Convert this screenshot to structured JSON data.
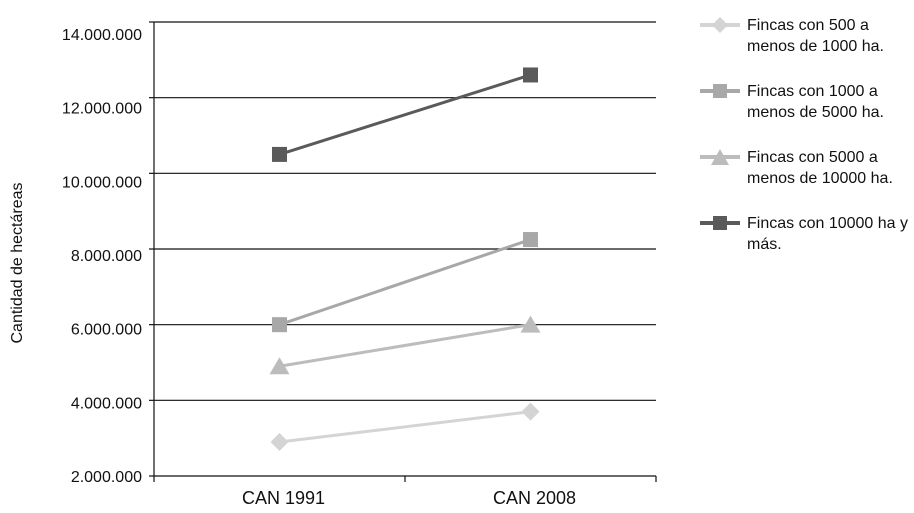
{
  "chart_data": {
    "type": "line",
    "title": "",
    "xlabel": "",
    "ylabel": "Cantidad de hectáreas",
    "categories": [
      "CAN 1991",
      "CAN 2008"
    ],
    "yticks": [
      "2.000.000",
      "4.000.000",
      "6.000.000",
      "8.000.000",
      "10.000.000",
      "12.000.000",
      "14.000.000"
    ],
    "ylim": [
      2000000,
      14000000
    ],
    "grid": true,
    "legend_position": "right",
    "series": [
      {
        "name": "Fincas con 500 a menos de 1000 ha.",
        "marker": "diamond",
        "color": "#d4d4d4",
        "values": [
          2900000,
          3700000
        ]
      },
      {
        "name": "Fincas con 1000 a menos de 5000 ha.",
        "marker": "square",
        "color": "#a8a8a8",
        "values": [
          6000000,
          8250000
        ]
      },
      {
        "name": "Fincas con 5000 a menos de 10000 ha.",
        "marker": "triangle",
        "color": "#bcbcbc",
        "values": [
          4900000,
          6000000
        ]
      },
      {
        "name": "Fincas con 10000 ha y más.",
        "marker": "square",
        "color": "#5a5a5a",
        "values": [
          10500000,
          12600000
        ]
      }
    ]
  }
}
